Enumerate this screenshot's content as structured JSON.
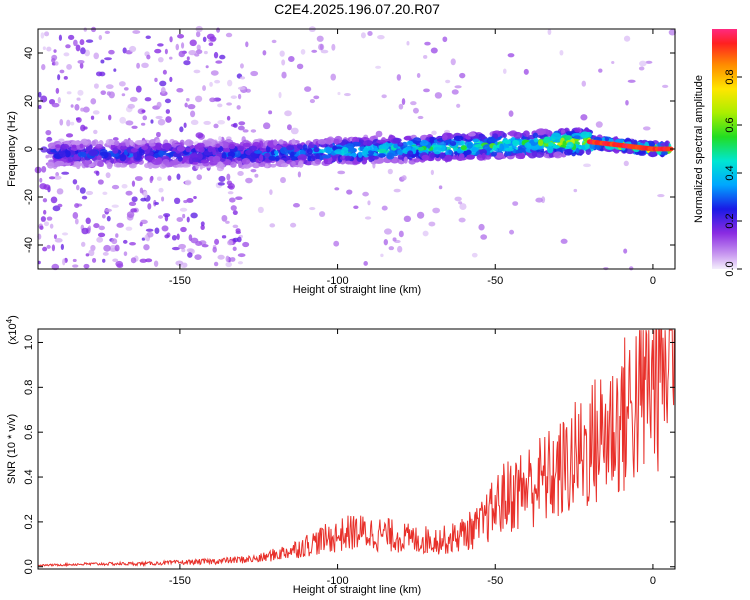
{
  "title": "C2E4.2025.196.07.20.R07",
  "chart_data": [
    {
      "type": "heatmap",
      "xlabel": "Height of straight line (km)",
      "ylabel": "Frequency (Hz)",
      "xlim": [
        -195,
        7
      ],
      "ylim": [
        -50,
        50
      ],
      "xticks": [
        -150,
        -100,
        -50,
        0
      ],
      "xtick_labels": [
        "-150",
        "-100",
        "-50",
        "0"
      ],
      "yticks": [
        -40,
        -20,
        0,
        20,
        40
      ],
      "ytick_labels": [
        "-40",
        "-20",
        "0",
        "20",
        "40"
      ],
      "grid": false,
      "colorbar": {
        "label": "Normalized spectral amplitude",
        "range": [
          0,
          1
        ],
        "ticks": [
          0,
          0.2,
          0.4,
          0.6,
          0.8
        ],
        "tick_labels": [
          "0.0",
          "0.2",
          "0.4",
          "0.6",
          "0.8"
        ],
        "colormap": "rainbow"
      },
      "trace": {
        "description_x": [
          -190,
          -160,
          -140,
          -120,
          -100,
          -80,
          -60,
          -40,
          -20,
          0,
          7
        ],
        "frequency_hz": [
          -2,
          -2,
          -2,
          -2,
          -1,
          0,
          1,
          2,
          3,
          0,
          0
        ],
        "peak_amplitude": [
          0.3,
          0.3,
          0.3,
          0.35,
          0.45,
          0.5,
          0.55,
          0.55,
          0.8,
          0.9,
          0.9
        ]
      }
    },
    {
      "type": "line",
      "xlabel": "Height of straight line (km)",
      "ylabel": "SNR (10 * v/v)",
      "y_multiplier": "(x10",
      "y_multiplier_exp": "4",
      "y_multiplier_close": ")",
      "xlim": [
        -195,
        7
      ],
      "ylim": [
        -0.01,
        1.06
      ],
      "xticks": [
        -150,
        -100,
        -50,
        0
      ],
      "xtick_labels": [
        "-150",
        "-100",
        "-50",
        "0"
      ],
      "yticks": [
        0,
        0.2,
        0.4,
        0.6,
        0.8,
        1.0
      ],
      "ytick_labels": [
        "0.0",
        "0.2",
        "0.4",
        "0.6",
        "0.8",
        "1.0"
      ],
      "grid": false,
      "color": "#e8302a",
      "series": [
        {
          "x": [
            -195,
            -180,
            -160,
            -140,
            -125,
            -115,
            -105,
            -95,
            -85,
            -75,
            -65,
            -55,
            -48,
            -40,
            -30,
            -20,
            -10,
            0,
            7
          ],
          "y": [
            0.005,
            0.01,
            0.012,
            0.02,
            0.03,
            0.06,
            0.1,
            0.13,
            0.12,
            0.1,
            0.1,
            0.15,
            0.25,
            0.3,
            0.35,
            0.45,
            0.55,
            0.7,
            0.9
          ]
        }
      ]
    }
  ]
}
